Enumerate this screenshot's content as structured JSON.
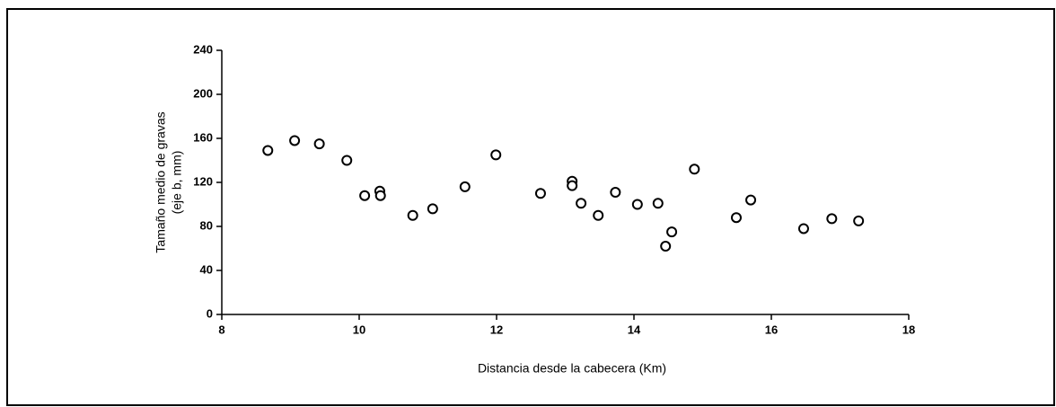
{
  "chart_data": {
    "type": "scatter",
    "xlabel": "Distancia desde la cabecera (Km)",
    "ylabel": [
      "Tamaño medio de gravas",
      "(eje b, mm)"
    ],
    "color": "#000000",
    "x": [
      8.67,
      9.06,
      9.42,
      9.82,
      10.08,
      10.3,
      10.31,
      10.78,
      11.07,
      11.54,
      11.99,
      12.64,
      13.1,
      13.1,
      13.23,
      13.48,
      13.73,
      14.05,
      14.35,
      14.46,
      14.55,
      14.88,
      15.49,
      15.7,
      16.47,
      16.88,
      17.27
    ],
    "values": [
      149,
      158,
      155,
      140,
      108,
      112,
      108,
      90,
      96,
      116,
      145,
      110,
      121,
      117,
      101,
      90,
      111,
      100,
      101,
      62,
      75,
      132,
      88,
      104,
      78,
      87,
      85
    ],
    "xlim": [
      8,
      18
    ],
    "xticks": [
      8,
      10,
      12,
      14,
      16,
      18
    ],
    "ylim": [
      0,
      240
    ],
    "yticks": [
      0,
      40,
      80,
      120,
      160,
      200,
      240
    ]
  }
}
